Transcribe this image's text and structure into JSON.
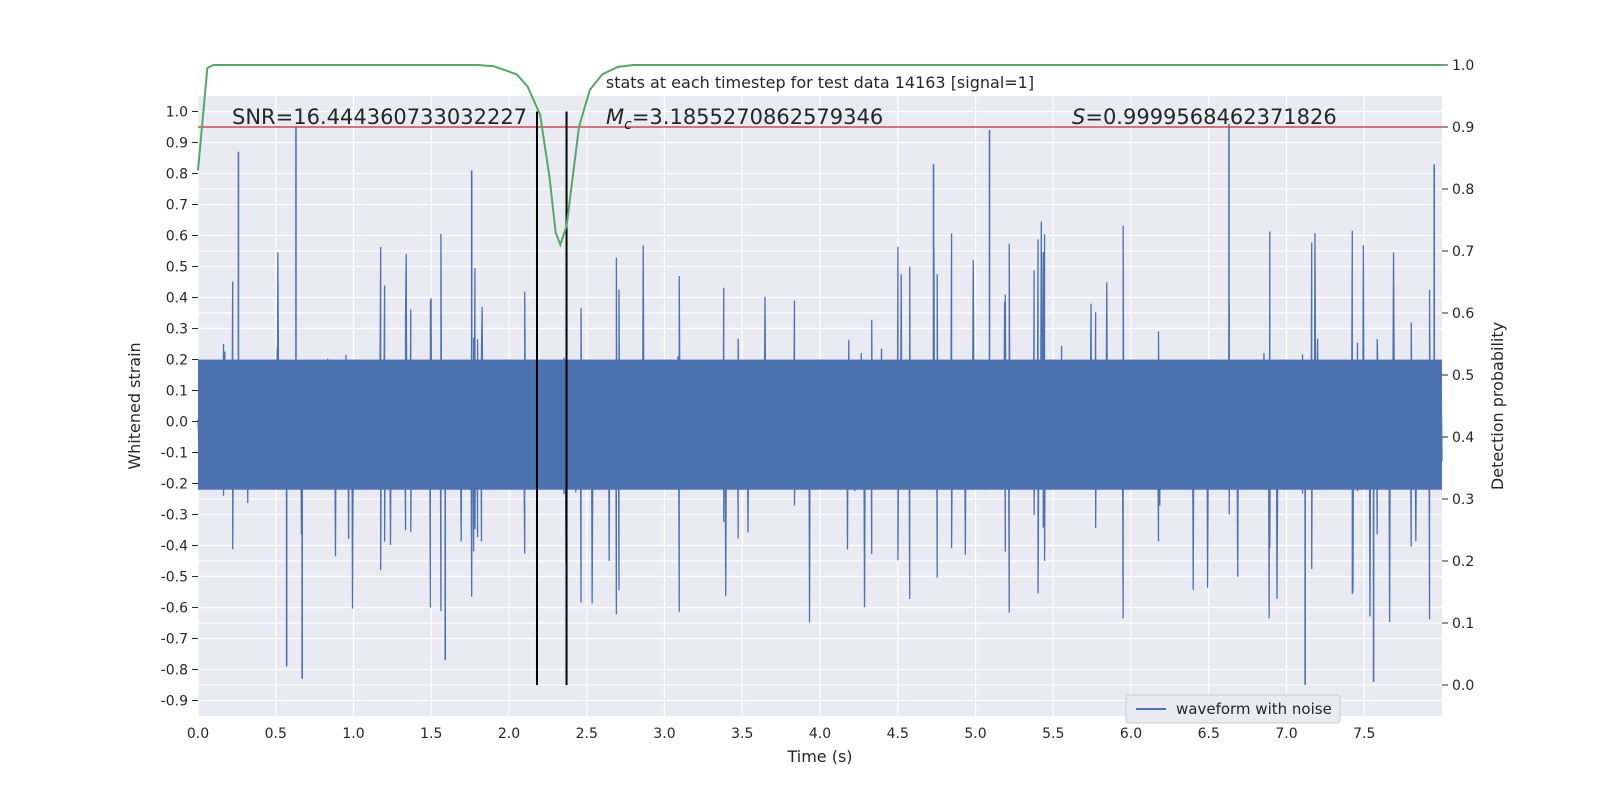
{
  "chart_data": {
    "type": "line",
    "title": "stats at each timestep for test data 14163 [signal=1]",
    "xlabel": "Time (s)",
    "ylabel": "Whitened strain",
    "y2label": "Detection probability",
    "xlim": [
      0.0,
      8.0
    ],
    "ylim": [
      -0.95,
      1.05
    ],
    "y2lim": [
      -0.05,
      0.95
    ],
    "x_ticks": [
      "0.0",
      "0.5",
      "1.0",
      "1.5",
      "2.0",
      "2.5",
      "3.0",
      "3.5",
      "4.0",
      "4.5",
      "5.0",
      "5.5",
      "6.0",
      "6.5",
      "7.0",
      "7.5"
    ],
    "y_ticks": [
      "1.0",
      "0.9",
      "0.8",
      "0.7",
      "0.6",
      "0.5",
      "0.4",
      "0.3",
      "0.2",
      "0.1",
      "0.0",
      "-0.1",
      "-0.2",
      "-0.3",
      "-0.4",
      "-0.5",
      "-0.6",
      "-0.7",
      "-0.8",
      "-0.9"
    ],
    "y2_ticks": [
      "1.0",
      "0.9",
      "0.8",
      "0.7",
      "0.6",
      "0.5",
      "0.4",
      "0.3",
      "0.2",
      "0.1",
      "0.0"
    ],
    "grid": true,
    "legend_position": "lower-right",
    "annotations": {
      "snr": "SNR=16.444360733032227",
      "mc": "=3.1855270862579346",
      "mc_symbol": "M",
      "mc_sub": "c",
      "s": "=0.9999568462371826",
      "s_symbol": "S"
    },
    "series": [
      {
        "name": "waveform with noise",
        "axis": "left",
        "color": "#4c72b0",
        "style": "dense-noise",
        "envelope_upper_typical": 0.45,
        "envelope_lower_typical": -0.5,
        "peaks": [
          {
            "x": 0.26,
            "y": 0.87
          },
          {
            "x": 0.63,
            "y": 0.95
          },
          {
            "x": 0.57,
            "y": -0.79
          },
          {
            "x": 0.67,
            "y": -0.83
          },
          {
            "x": 1.76,
            "y": 0.81
          },
          {
            "x": 1.59,
            "y": -0.77
          },
          {
            "x": 2.18,
            "y": -0.78
          },
          {
            "x": 4.73,
            "y": 0.83
          },
          {
            "x": 5.09,
            "y": 0.94
          },
          {
            "x": 6.63,
            "y": 0.96
          },
          {
            "x": 7.12,
            "y": -0.85
          },
          {
            "x": 7.56,
            "y": -0.84
          },
          {
            "x": 7.95,
            "y": 0.83
          }
        ]
      },
      {
        "name": "",
        "axis": "right",
        "color": "#55a868",
        "x": [
          0.0,
          0.06,
          0.1,
          0.3,
          1.0,
          1.8,
          1.9,
          2.05,
          2.12,
          2.2,
          2.26,
          2.3,
          2.33,
          2.37,
          2.4,
          2.45,
          2.52,
          2.6,
          2.7,
          2.8,
          3.0,
          5.0,
          8.0
        ],
        "values": [
          0.83,
          0.995,
          1.0,
          1.0,
          1.0,
          1.0,
          0.998,
          0.985,
          0.965,
          0.92,
          0.82,
          0.73,
          0.71,
          0.74,
          0.8,
          0.9,
          0.96,
          0.985,
          0.997,
          1.0,
          1.0,
          1.0,
          1.0
        ]
      }
    ],
    "hlines": [
      {
        "axis": "right",
        "y": 0.9,
        "color": "#c44e52"
      }
    ],
    "vlines": [
      {
        "x": 2.18,
        "y_from": -0.85,
        "y_to": 1.0,
        "color": "#000000"
      },
      {
        "x": 2.37,
        "y_from": -0.85,
        "y_to": 1.0,
        "color": "#000000"
      }
    ]
  }
}
